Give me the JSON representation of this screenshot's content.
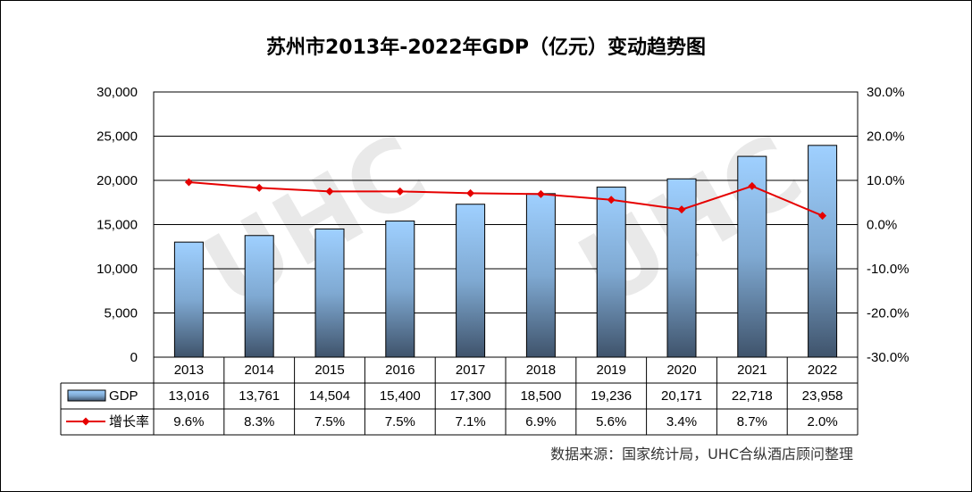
{
  "chart_data": {
    "type": "bar",
    "title": "苏州市2013年-2022年GDP（亿元）变动趋势图",
    "categories": [
      "2013",
      "2014",
      "2015",
      "2016",
      "2017",
      "2018",
      "2019",
      "2020",
      "2021",
      "2022"
    ],
    "series": [
      {
        "name": "GDP",
        "type": "bar",
        "axis": "left",
        "values": [
          13016,
          13761,
          14504,
          15400,
          17300,
          18500,
          19236,
          20171,
          22718,
          23958
        ],
        "labels": [
          "13,016",
          "13,761",
          "14,504",
          "15,400",
          "17,300",
          "18,500",
          "19,236",
          "20,171",
          "22,718",
          "23,958"
        ]
      },
      {
        "name": "增长率",
        "type": "line",
        "axis": "right",
        "values": [
          9.6,
          8.3,
          7.5,
          7.5,
          7.1,
          6.9,
          5.6,
          3.4,
          8.7,
          2.0
        ],
        "labels": [
          "9.6%",
          "8.3%",
          "7.5%",
          "7.5%",
          "7.1%",
          "6.9%",
          "5.6%",
          "3.4%",
          "8.7%",
          "2.0%"
        ]
      }
    ],
    "ylim_left": [
      0,
      30000
    ],
    "ylim_right": [
      -30,
      30
    ],
    "yticks_left": [
      "30,000",
      "25,000",
      "20,000",
      "15,000",
      "10,000",
      "5,000",
      "0"
    ],
    "yticks_right": [
      "30.0%",
      "20.0%",
      "10.0%",
      "0.0%",
      "-10.0%",
      "-20.0%",
      "-30.0%"
    ],
    "grid": true,
    "legend": "data-table"
  },
  "source_note": "数据来源：国家统计局，UHC合纵酒店顾问整理",
  "colors": {
    "bar_top": "#9fd0ff",
    "bar_bottom": "#3f536b",
    "line": "#e60000"
  }
}
